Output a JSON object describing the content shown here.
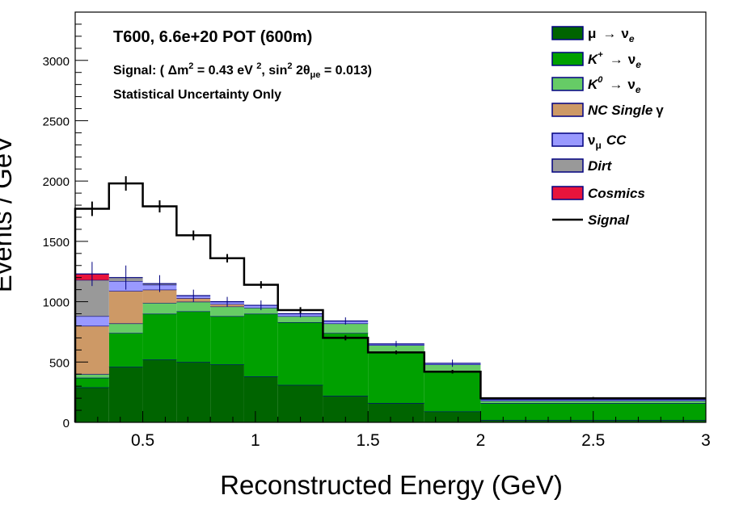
{
  "colors": {
    "numu_to_nue": "#006400",
    "kplus_to_nue": "#00a000",
    "k0_to_nue": "#66cc66",
    "nc_single_gamma": "#cd9966",
    "numu_cc": "#9999ff",
    "dirt": "#999999",
    "cosmics": "#e8143c",
    "signal": "#000000",
    "outline": "#000080"
  },
  "header": {
    "line1": "T600, 6.6e+20 POT (600m)",
    "line2_a": "Signal: ( ",
    "line2_dm": "Δm",
    "line2_sup2": "2",
    "line2_b": " = 0.43 eV ",
    "line2_sup2b": "2",
    "line2_c": ", sin",
    "line2_sup2c": "2",
    "line2_d": " 2θ",
    "line2_sub": "μe",
    "line2_e": " = 0.013)",
    "line3": "Statistical Uncertainty Only"
  },
  "legend": {
    "numu_nue": {
      "a": "μ",
      "arrow": "→",
      "b": "ν",
      "sub": "e"
    },
    "kplus_nue": {
      "a": "K",
      "sup": "+",
      "arrow": "→",
      "b": "ν",
      "sub": "e"
    },
    "k0_nue": {
      "a": "K",
      "sup": "0",
      "arrow": "→",
      "b": "ν",
      "sub": "e"
    },
    "nc_gamma": {
      "a": "NC Single",
      "b": "γ"
    },
    "numu_cc": {
      "a": "ν",
      "sub": "μ",
      "b": "CC"
    },
    "dirt": "Dirt",
    "cosmics": "Cosmics",
    "signal": "Signal"
  },
  "chart_data": {
    "type": "bar",
    "subtype": "stacked histogram",
    "xlabel": "Reconstructed Energy (GeV)",
    "ylabel": "Events / GeV",
    "xlim": [
      0.2,
      3.0
    ],
    "ylim": [
      0,
      3400
    ],
    "xticks": [
      0.5,
      1,
      1.5,
      2,
      2.5,
      3
    ],
    "xtick_labels": [
      "0.5",
      "1",
      "1.5",
      "2",
      "2.5",
      "3"
    ],
    "yticks": [
      0,
      500,
      1000,
      1500,
      2000,
      2500,
      3000
    ],
    "ytick_labels": [
      "0",
      "500",
      "1000",
      "1500",
      "2000",
      "2500",
      "3000"
    ],
    "bin_edges": [
      0.2,
      0.35,
      0.5,
      0.65,
      0.8,
      0.95,
      1.1,
      1.3,
      1.5,
      1.75,
      2.0,
      3.0
    ],
    "stack_order": [
      "numu_to_nue",
      "kplus_to_nue",
      "k0_to_nue",
      "nc_single_gamma",
      "numu_cc",
      "dirt",
      "cosmics"
    ],
    "series": [
      {
        "key": "numu_to_nue",
        "values": [
          290,
          460,
          520,
          500,
          480,
          380,
          310,
          220,
          160,
          90,
          20
        ]
      },
      {
        "key": "kplus_to_nue",
        "values": [
          80,
          280,
          380,
          420,
          400,
          520,
          520,
          520,
          420,
          330,
          140
        ]
      },
      {
        "key": "k0_to_nue",
        "values": [
          30,
          80,
          90,
          80,
          80,
          50,
          50,
          80,
          60,
          60,
          20
        ]
      },
      {
        "key": "nc_single_gamma",
        "values": [
          400,
          270,
          110,
          30,
          20,
          0,
          0,
          0,
          0,
          0,
          0
        ]
      },
      {
        "key": "numu_cc",
        "values": [
          80,
          80,
          40,
          20,
          20,
          20,
          20,
          20,
          10,
          10,
          10
        ]
      },
      {
        "key": "dirt",
        "values": [
          300,
          30,
          10,
          0,
          0,
          0,
          0,
          0,
          0,
          0,
          0
        ]
      },
      {
        "key": "cosmics",
        "values": [
          50,
          0,
          0,
          0,
          0,
          0,
          0,
          0,
          0,
          0,
          0
        ]
      }
    ],
    "stack_error_bars": [
      100,
      100,
      70,
      50,
      40,
      40,
      30,
      30,
      25,
      30,
      0
    ],
    "signal": {
      "values": [
        1770,
        1980,
        1790,
        1550,
        1360,
        1140,
        930,
        700,
        580,
        420,
        200
      ],
      "errors": [
        60,
        60,
        50,
        40,
        35,
        30,
        25,
        20,
        15,
        15,
        10
      ]
    }
  }
}
